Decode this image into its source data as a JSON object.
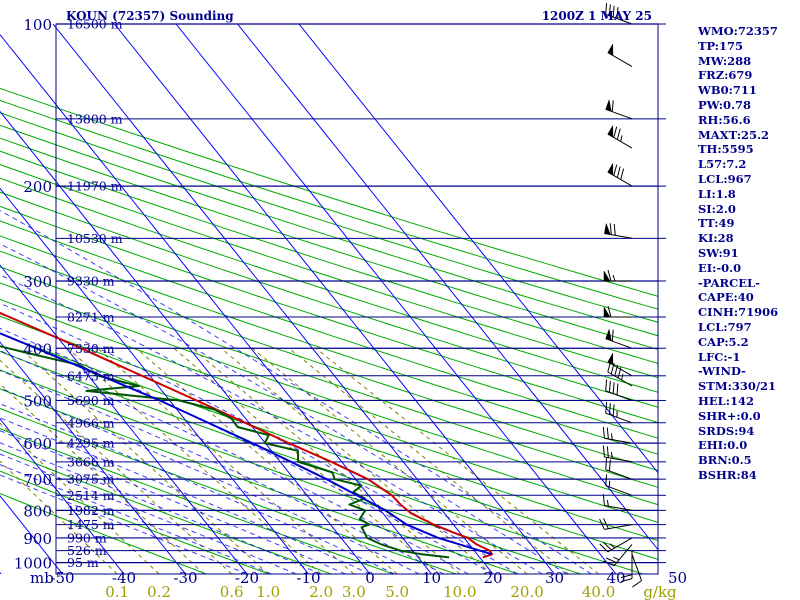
{
  "header": {
    "station": "KOUN (72357) Sounding",
    "datetime": "1200Z  1 MAY 25"
  },
  "indices": [
    "WMO:72357",
    "TP:175",
    "MW:288",
    "FRZ:679",
    "WB0:711",
    "PW:0.78",
    "RH:56.6",
    "MAXT:25.2",
    "TH:5595",
    "L57:7.2",
    "LCL:967",
    "LI:1.8",
    "SI:2.0",
    "TT:49",
    "KI:28",
    "SW:91",
    "EI:-0.0",
    "-PARCEL-",
    "CAPE:40",
    "CINH:71906",
    "LCL:797",
    "CAP:5.2",
    "LFC:-1",
    "-WIND-",
    "STM:330/21",
    "HEL:142",
    "SHR+:0.0",
    "SRDS:94",
    "EHI:0.0",
    "BRN:0.5",
    "BSHR:84"
  ],
  "colors": {
    "isobar": "#00008b",
    "isotherm": "#0000ff",
    "dry_adiabat": "#00aa00",
    "moist_adiabat": "#0000ff",
    "mixing_ratio": "#808000",
    "temperature": "#cc0000",
    "dewpoint": "#005500",
    "parcel": "#0000cc",
    "mixing_label": "#a0a000",
    "text": "#00008b"
  },
  "chart_data": {
    "type": "skew-t",
    "xlabel_unit": "mb",
    "mixing_unit": "g/kg",
    "pressure_ticks": [
      100,
      200,
      300,
      400,
      500,
      600,
      700,
      800,
      900,
      1000
    ],
    "temperature_ticks": [
      -50,
      -40,
      -30,
      -20,
      -10,
      0,
      10,
      20,
      30,
      40,
      50
    ],
    "mixing_ratio_labels": [
      "0.1",
      "0.2",
      "0.6",
      "1.0",
      "2.0",
      "3.0",
      "5.0",
      "10.0",
      "20.0",
      "40.0"
    ],
    "mixing_ratio_values": [
      0.1,
      0.2,
      0.6,
      1.0,
      2.0,
      3.0,
      5.0,
      10.0,
      20.0,
      40.0
    ],
    "height_labels": [
      {
        "p": 100,
        "text": "16500 m"
      },
      {
        "p": 150,
        "text": "13800 m"
      },
      {
        "p": 200,
        "text": "11970 m"
      },
      {
        "p": 250,
        "text": "10530 m"
      },
      {
        "p": 300,
        "text": "9330 m"
      },
      {
        "p": 350,
        "text": "8271 m"
      },
      {
        "p": 400,
        "text": "7330 m"
      },
      {
        "p": 450,
        "text": "6473 m"
      },
      {
        "p": 500,
        "text": "5690 m"
      },
      {
        "p": 550,
        "text": "4966 m"
      },
      {
        "p": 600,
        "text": "4295 m"
      },
      {
        "p": 650,
        "text": "3666 m"
      },
      {
        "p": 700,
        "text": "3075 m"
      },
      {
        "p": 750,
        "text": "2514 m"
      },
      {
        "p": 800,
        "text": "1982 m"
      },
      {
        "p": 850,
        "text": "1475 m"
      },
      {
        "p": 900,
        "text": "990 m"
      },
      {
        "p": 950,
        "text": "526 m"
      },
      {
        "p": 1000,
        "text": "95 m"
      }
    ],
    "series": [
      {
        "name": "Temperature",
        "points": [
          [
            978,
            20.5
          ],
          [
            965,
            22.4
          ],
          [
            950,
            22.5
          ],
          [
            925,
            21.2
          ],
          [
            900,
            20.6
          ],
          [
            880,
            19.0
          ],
          [
            850,
            16.8
          ],
          [
            810,
            14.6
          ],
          [
            780,
            14.0
          ],
          [
            750,
            13.8
          ],
          [
            700,
            12.0
          ],
          [
            650,
            8.3
          ],
          [
            600,
            3.8
          ],
          [
            550,
            -0.6
          ],
          [
            500,
            -5.6
          ],
          [
            450,
            -11.3
          ],
          [
            420,
            -15.0
          ],
          [
            400,
            -17.6
          ],
          [
            350,
            -25.2
          ],
          [
            300,
            -34.3
          ],
          [
            250,
            -43.4
          ],
          [
            200,
            -53.8
          ],
          [
            180,
            -58.5
          ],
          [
            150,
            -62.4
          ],
          [
            120,
            -58.0
          ],
          [
            100,
            -56.0
          ]
        ]
      },
      {
        "name": "Dewpoint",
        "points": [
          [
            978,
            15.0
          ],
          [
            965,
            11.0
          ],
          [
            950,
            8.0
          ],
          [
            925,
            5.7
          ],
          [
            900,
            4.2
          ],
          [
            880,
            4.5
          ],
          [
            860,
            4.7
          ],
          [
            850,
            6.3
          ],
          [
            830,
            5.5
          ],
          [
            800,
            7.5
          ],
          [
            780,
            5.7
          ],
          [
            760,
            9.0
          ],
          [
            740,
            7.9
          ],
          [
            720,
            10.1
          ],
          [
            700,
            6.6
          ],
          [
            680,
            7.1
          ],
          [
            650,
            2.9
          ],
          [
            620,
            4.3
          ],
          [
            600,
            -0.1
          ],
          [
            580,
            1.6
          ],
          [
            560,
            -2.4
          ],
          [
            540,
            -2.3
          ],
          [
            520,
            -3.9
          ],
          [
            500,
            -8.4
          ],
          [
            480,
            -22.3
          ],
          [
            470,
            -13.1
          ],
          [
            450,
            -18.4
          ],
          [
            430,
            -20.0
          ],
          [
            410,
            -26.4
          ],
          [
            380,
            -35.8
          ],
          [
            350,
            -37.0
          ],
          [
            300,
            -45.0
          ],
          [
            280,
            -51.0
          ],
          [
            250,
            -54.7
          ],
          [
            200,
            -67.1
          ],
          [
            180,
            -75.2
          ],
          [
            150,
            -83.2
          ],
          [
            120,
            -82.2
          ],
          [
            100,
            -79.5
          ]
        ]
      },
      {
        "name": "Parcel",
        "points": [
          [
            965,
            22.4
          ],
          [
            900,
            15.8
          ],
          [
            850,
            12.4
          ],
          [
            800,
            10.8
          ],
          [
            700,
            5.3
          ],
          [
            600,
            -2.1
          ],
          [
            500,
            -11.6
          ],
          [
            400,
            -24.9
          ],
          [
            300,
            -42.6
          ],
          [
            250,
            -53.6
          ],
          [
            200,
            -65.2
          ],
          [
            160,
            -76.1
          ],
          [
            135,
            -82.8
          ]
        ]
      }
    ],
    "wind_barbs": [
      {
        "p": 965,
        "dir": 160,
        "spd": 10
      },
      {
        "p": 950,
        "dir": 180,
        "spd": 20
      },
      {
        "p": 925,
        "dir": 220,
        "spd": 25
      },
      {
        "p": 900,
        "dir": 240,
        "spd": 25
      },
      {
        "p": 850,
        "dir": 260,
        "spd": 20
      },
      {
        "p": 800,
        "dir": 280,
        "spd": 15
      },
      {
        "p": 750,
        "dir": 290,
        "spd": 15
      },
      {
        "p": 700,
        "dir": 290,
        "spd": 20
      },
      {
        "p": 650,
        "dir": 280,
        "spd": 25
      },
      {
        "p": 600,
        "dir": 280,
        "spd": 25
      },
      {
        "p": 550,
        "dir": 290,
        "spd": 35
      },
      {
        "p": 500,
        "dir": 290,
        "spd": 40
      },
      {
        "p": 470,
        "dir": 300,
        "spd": 45
      },
      {
        "p": 450,
        "dir": 300,
        "spd": 50
      },
      {
        "p": 400,
        "dir": 290,
        "spd": 60
      },
      {
        "p": 350,
        "dir": 270,
        "spd": 60
      },
      {
        "p": 300,
        "dir": 270,
        "spd": 65
      },
      {
        "p": 250,
        "dir": 280,
        "spd": 70
      },
      {
        "p": 200,
        "dir": 300,
        "spd": 80
      },
      {
        "p": 170,
        "dir": 300,
        "spd": 75
      },
      {
        "p": 150,
        "dir": 290,
        "spd": 60
      },
      {
        "p": 120,
        "dir": 300,
        "spd": 50
      },
      {
        "p": 100,
        "dir": 290,
        "spd": 40
      }
    ]
  }
}
